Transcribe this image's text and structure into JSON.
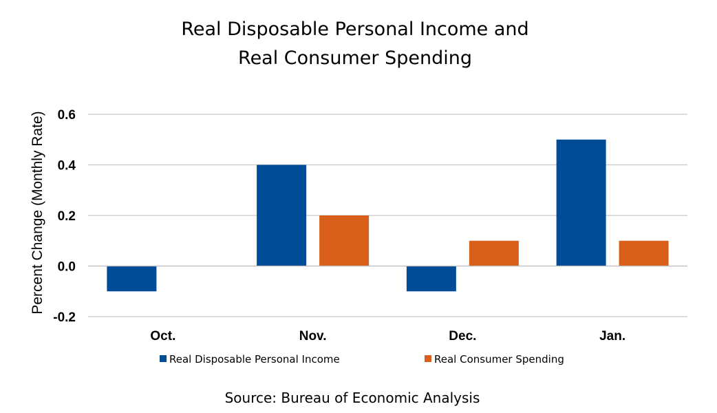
{
  "chart_data": {
    "type": "bar",
    "title_lines": [
      "Real Disposable Personal Income and",
      "Real Consumer Spending"
    ],
    "ylabel": "Percent Change (Monthly Rate)",
    "xlabel": "",
    "categories": [
      "Oct.",
      "Nov.",
      "Dec.",
      "Jan."
    ],
    "series": [
      {
        "name": "Real Disposable Personal Income",
        "color": "#004C97",
        "values": [
          -0.1,
          0.4,
          -0.1,
          0.5
        ]
      },
      {
        "name": "Real Consumer Spending",
        "color": "#D9601A",
        "values": [
          0.0,
          0.2,
          0.1,
          0.1
        ]
      }
    ],
    "ylim": [
      -0.2,
      0.6
    ],
    "yticks": [
      -0.2,
      0.0,
      0.2,
      0.4,
      0.6
    ],
    "ytick_labels": [
      "-0.2",
      "0.0",
      "0.2",
      "0.4",
      "0.6"
    ],
    "grid": true,
    "gridline_color": "#C8C8C8",
    "legend_position": "bottom",
    "source": "Source:  Bureau of Economic Analysis"
  }
}
